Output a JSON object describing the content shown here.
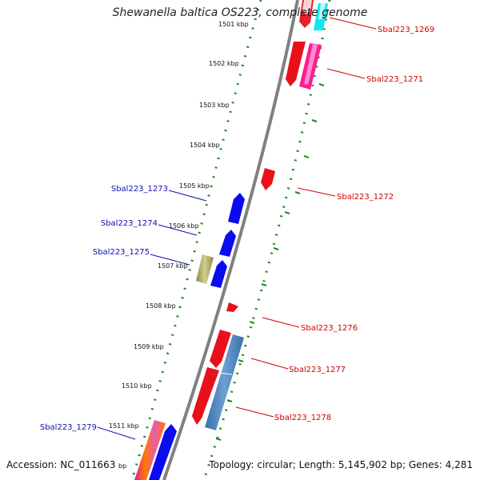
{
  "header": {
    "title": "Shewanella baltica OS223, complete genome"
  },
  "footer": {
    "accession": "Accession: NC_011663",
    "summary": "Topology: circular; Length: 5,145,902 bp; Genes: 4,281"
  },
  "colors": {
    "backbone": "#808080",
    "inner_ring_dots": "#1f8a1f",
    "outer_ring_dots": "#1f8a1f",
    "forward_label": "#d40000",
    "reverse_label": "#1010b0"
  },
  "ticks": [
    {
      "label": "1501 kbp"
    },
    {
      "label": "1502 kbp"
    },
    {
      "label": "1503 kbp"
    },
    {
      "label": "1504 kbp"
    },
    {
      "label": "1505 kbp"
    },
    {
      "label": "1506 kbp"
    },
    {
      "label": "1507 kbp"
    },
    {
      "label": "1508 kbp"
    },
    {
      "label": "1509 kbp"
    },
    {
      "label": "1510 kbp"
    },
    {
      "label": "1511 kbp"
    },
    {
      "label": "bp"
    }
  ],
  "labels": [
    {
      "text": "Sbal223_1269",
      "strand": "forward"
    },
    {
      "text": "Sbal223_1271",
      "strand": "forward"
    },
    {
      "text": "Sbal223_1272",
      "strand": "forward"
    },
    {
      "text": "Sbal223_1273",
      "strand": "reverse"
    },
    {
      "text": "Sbal223_1274",
      "strand": "reverse"
    },
    {
      "text": "Sbal223_1275",
      "strand": "reverse"
    },
    {
      "text": "Sbal223_1276",
      "strand": "forward"
    },
    {
      "text": "Sbal223_1277",
      "strand": "forward"
    },
    {
      "text": "Sbal223_1278",
      "strand": "forward"
    },
    {
      "text": "Sbal223_1279",
      "strand": "reverse"
    }
  ]
}
